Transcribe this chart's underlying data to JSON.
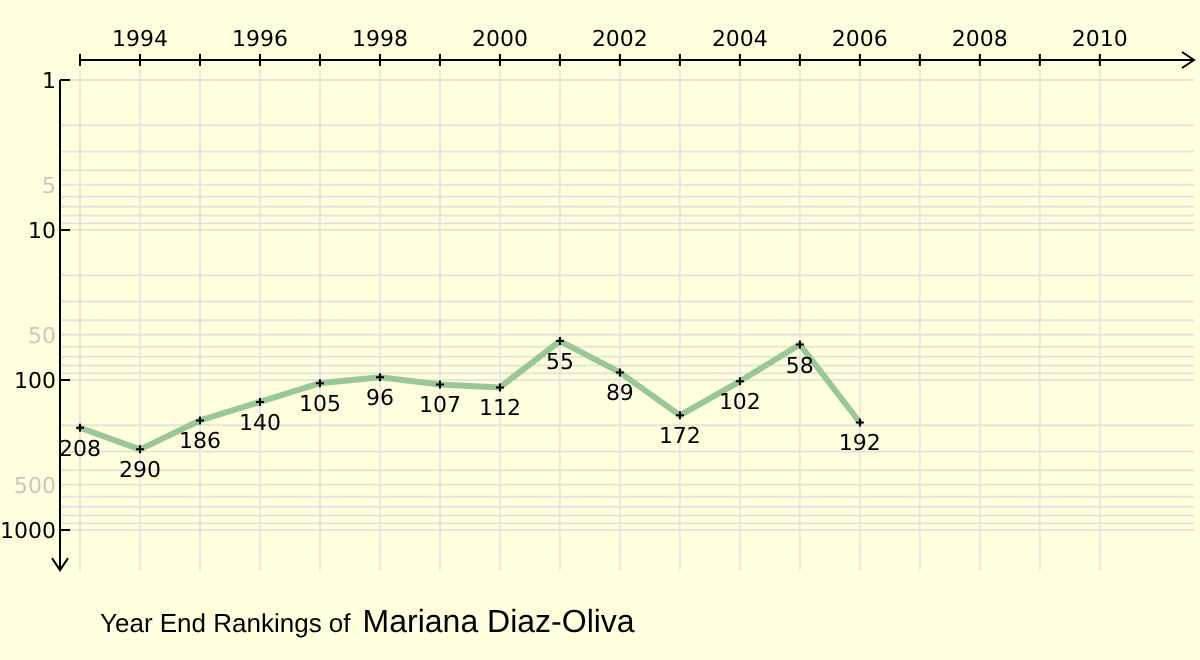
{
  "chart_data": {
    "type": "line",
    "title": "Year End Rankings of",
    "subtitle": "Mariana Diaz-Oliva",
    "x": [
      1993,
      1994,
      1995,
      1996,
      1997,
      1998,
      1999,
      2000,
      2001,
      2002,
      2003,
      2004,
      2005,
      2006
    ],
    "series": [
      {
        "color": "#99c799",
        "values": [
          208,
          290,
          186,
          140,
          105,
          96,
          107,
          112,
          55,
          89,
          172,
          102,
          58,
          192
        ]
      }
    ],
    "data_labels": true,
    "marker": "cross",
    "log": true,
    "grid": true,
    "xlim": [
      1993,
      2011.57
    ],
    "ylim": [
      1850,
      1
    ],
    "xticks": [
      {
        "value": 1993,
        "label": null
      },
      1994,
      {
        "value": 1995,
        "label": null
      },
      1996,
      {
        "value": 1997,
        "label": null
      },
      1998,
      {
        "value": 1999,
        "label": null
      },
      2000,
      {
        "value": 2001,
        "label": null
      },
      2002,
      {
        "value": 2003,
        "label": null
      },
      2004,
      {
        "value": 2005,
        "label": null
      },
      2006,
      {
        "value": 2007,
        "label": null
      },
      2008,
      {
        "value": 2009,
        "label": null
      },
      2010
    ],
    "yticks": [
      1,
      {
        "value": 2,
        "label": null
      },
      {
        "value": 3,
        "label": null
      },
      {
        "value": 4,
        "label": null
      },
      5,
      {
        "value": 6,
        "label": null
      },
      {
        "value": 7,
        "label": null
      },
      {
        "value": 8,
        "label": null
      },
      {
        "value": 9,
        "label": null
      },
      10,
      {
        "value": 20,
        "label": null
      },
      {
        "value": 30,
        "label": null
      },
      {
        "value": 40,
        "label": null
      },
      50,
      {
        "value": 60,
        "label": null
      },
      {
        "value": 70,
        "label": null
      },
      {
        "value": 80,
        "label": null
      },
      {
        "value": 90,
        "label": null
      },
      100,
      {
        "value": 200,
        "label": null
      },
      {
        "value": 300,
        "label": null
      },
      {
        "value": 400,
        "label": null
      },
      500,
      {
        "value": 600,
        "label": null
      },
      {
        "value": 700,
        "label": null
      },
      {
        "value": 800,
        "label": null
      },
      {
        "value": 900,
        "label": null
      },
      1000
    ]
  }
}
